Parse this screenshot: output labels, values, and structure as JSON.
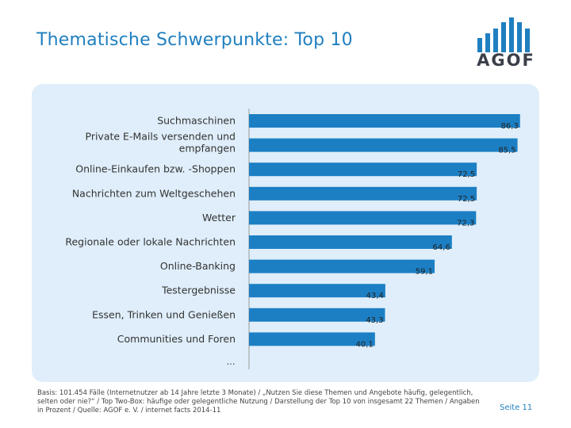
{
  "page": {
    "title": "Thematische Schwerpunkte: Top 10",
    "logo_text": "AGOF",
    "footnote": "Basis: 101.454 Fälle (Internetnutzer ab 14 Jahre letzte 3 Monate) / „Nutzen Sie diese Themen und Angebote häufig, gelegentlich, selten oder nie?“ / Top Two-Box: häufige oder gelegentliche Nutzung / Darstellung der Top 10 von insgesamt 22 Themen / Angaben in Prozent / Quelle: AGOF e. V. / internet facts 2014-11",
    "page_number": "Seite 11"
  },
  "colors": {
    "accent": "#1f7fc0",
    "bar": "#1c7fc4",
    "panel": "#dfeefa",
    "logo": "#1f7fc0",
    "logo_text": "#3a3f4a"
  },
  "chart_data": {
    "type": "bar",
    "orientation": "horizontal",
    "title": "Thematische Schwerpunkte: Top 10",
    "unit": "Prozent",
    "categories": [
      [
        "Suchmaschinen"
      ],
      [
        "Private E-Mails versenden und",
        "empfangen"
      ],
      [
        "Online-Einkaufen bzw. -Shoppen"
      ],
      [
        "Nachrichten zum Weltgeschehen"
      ],
      [
        "Wetter"
      ],
      [
        "Regionale oder lokale Nachrichten"
      ],
      [
        "Online-Banking"
      ],
      [
        "Testergebnisse"
      ],
      [
        "Essen, Trinken und Genießen"
      ],
      [
        "Communities und Foren"
      ]
    ],
    "values": [
      86.3,
      85.5,
      72.5,
      72.5,
      72.3,
      64.6,
      59.1,
      43.4,
      43.3,
      40.1
    ],
    "value_labels": [
      "86,3",
      "85,5",
      "72,5",
      "72,5",
      "72,3",
      "64,6",
      "59,1",
      "43,4",
      "43,3",
      "40,1"
    ],
    "trailing_label": "…",
    "xlim": [
      0,
      100
    ]
  }
}
